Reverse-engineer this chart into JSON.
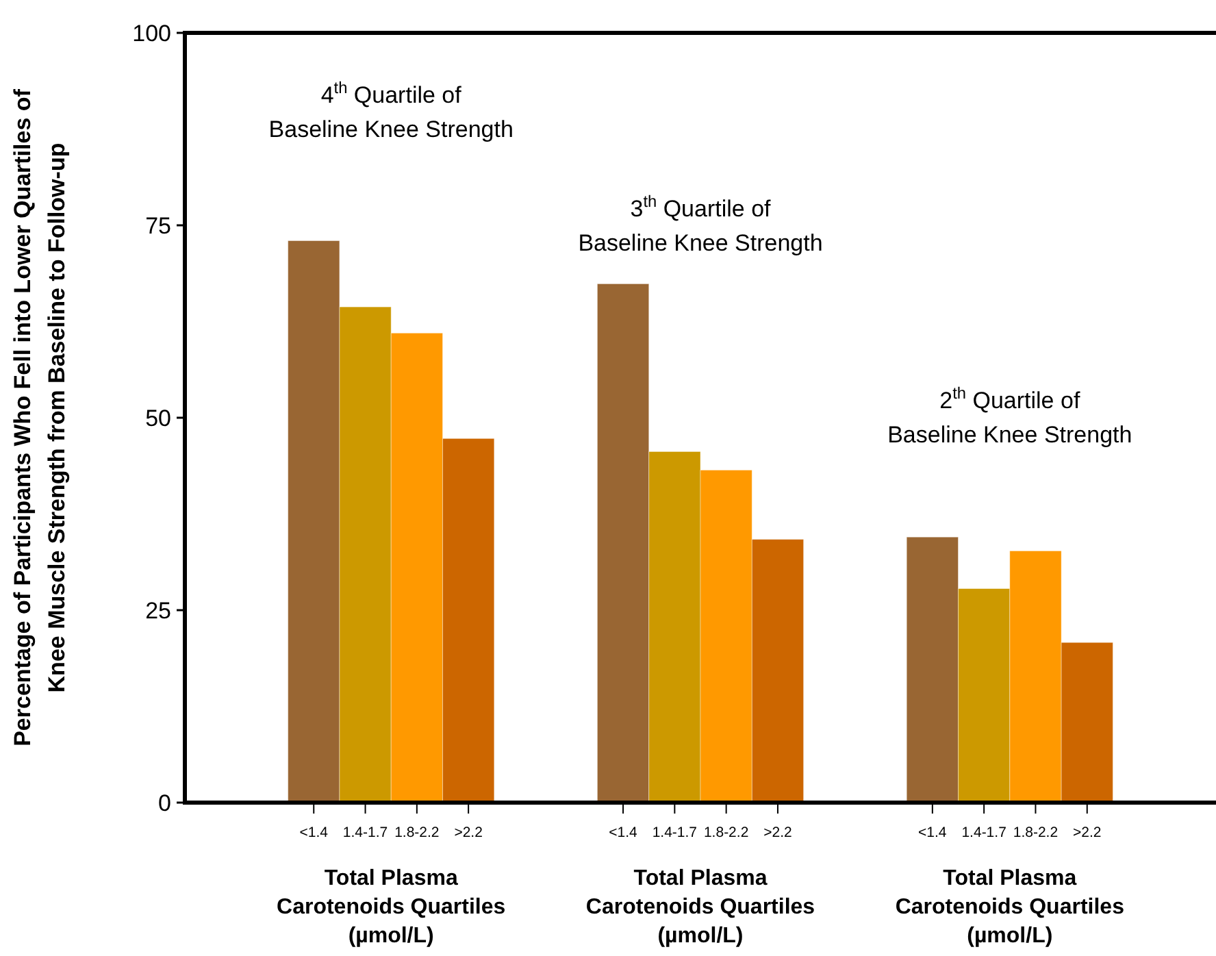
{
  "chart_data": {
    "type": "bar",
    "ylabel": "Percentage of Participants Who Fell into Lower Quartiles of\nKnee Muscle Strength from Baseline to Follow-up",
    "categories": [
      null,
      null,
      "<1.4",
      "1.4-1.7",
      "1.8-2.2",
      ">2.2",
      null,
      null,
      "<1.4",
      "1.4-1.7",
      "1.8-2.2",
      ">2.2",
      null,
      null,
      "<1.4",
      "1.4-1.7",
      "1.8-2.2",
      ">2.2",
      null,
      null
    ],
    "values": [
      null,
      null,
      73,
      64.4,
      61,
      47.3,
      null,
      null,
      67.4,
      45.6,
      43.2,
      34.2,
      null,
      null,
      34.5,
      27.8,
      32.7,
      20.8,
      null,
      null
    ],
    "colors": [
      null,
      null,
      "#996633",
      "#cc9900",
      "#ff9900",
      "#cc6600",
      null,
      null,
      "#996633",
      "#cc9900",
      "#ff9900",
      "#cc6600",
      null,
      null,
      "#996633",
      "#cc9900",
      "#ff9900",
      "#cc6600",
      null,
      null
    ],
    "ylim": [
      0,
      100
    ],
    "yticks": [
      0,
      25,
      50,
      75,
      100
    ],
    "grid": false,
    "annotations": [
      "4$^{th}$ Quartile of\nBaseline Knee Strength",
      "3$^{th}$ Quartile of\nBaseline Knee Strength",
      "2$^{th}$ Quartile of\nBaseline Knee Strength",
      "Total Plasma\nCarotenoids Quartiles\n(µmol/L)",
      "Total Plasma\nCarotenoids Quartiles\n(µmol/L)",
      "Total Plasma\nCarotenoids Quartiles\n(µmol/L)"
    ]
  }
}
